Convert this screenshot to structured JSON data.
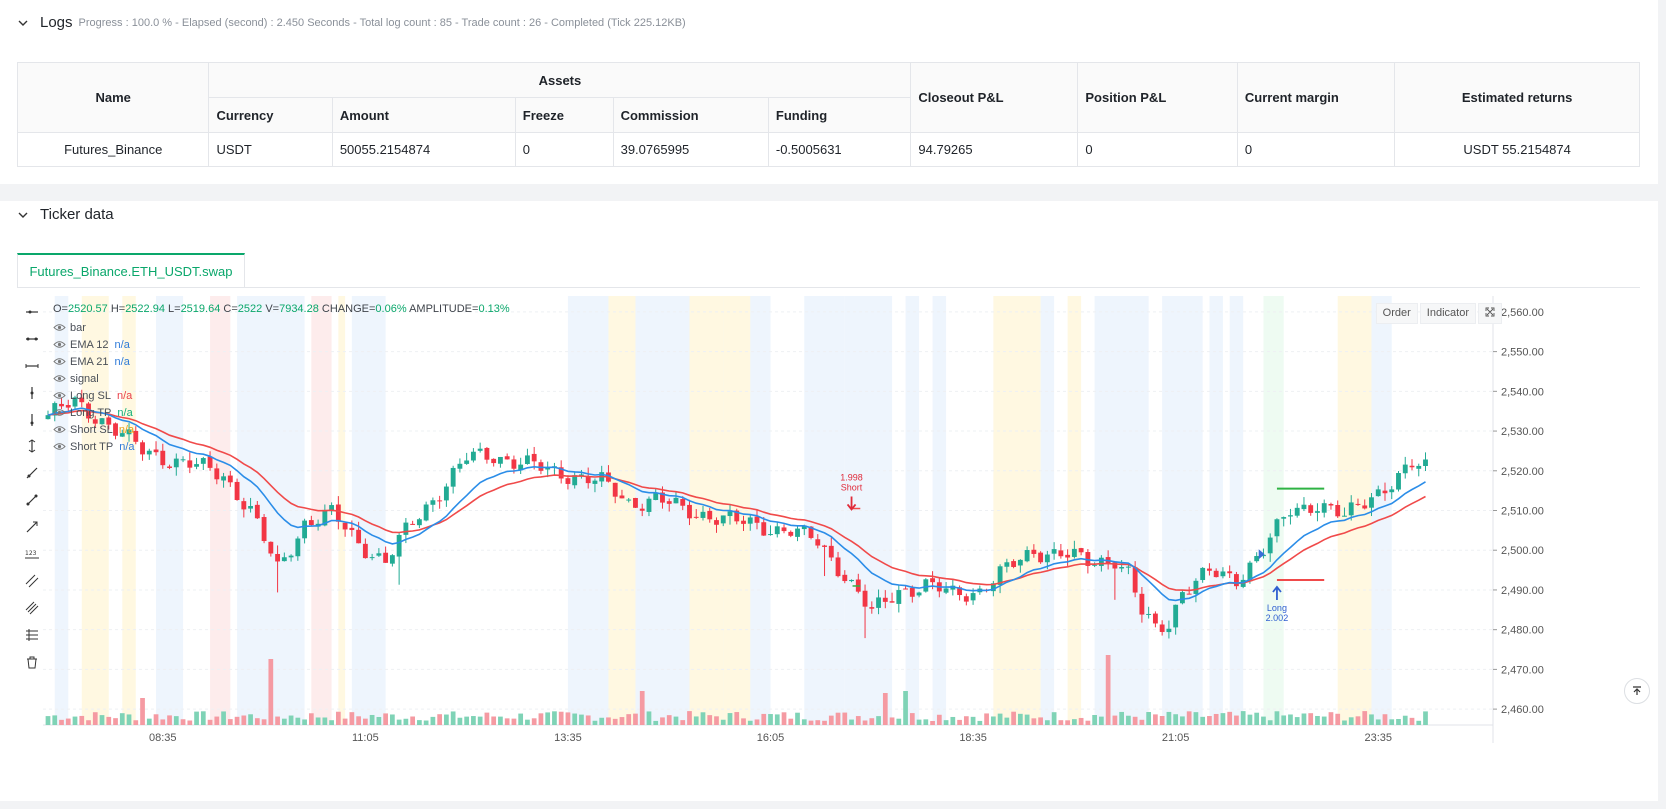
{
  "logs": {
    "title": "Logs",
    "stats": "Progress : 100.0 % - Elapsed (second) : 2.450  Seconds - Total log count : 85 - Trade count : 26 - Completed (Tick 225.12KB)"
  },
  "assets_table": {
    "group_header": "Assets",
    "headers": {
      "name": "Name",
      "currency": "Currency",
      "amount": "Amount",
      "freeze": "Freeze",
      "commission": "Commission",
      "funding": "Funding",
      "closeout_pl": "Closeout P&L",
      "position_pl": "Position P&L",
      "current_margin": "Current margin",
      "estimated_returns": "Estimated returns"
    },
    "row": {
      "name": "Futures_Binance",
      "currency": "USDT",
      "amount": "50055.2154874",
      "freeze": "0",
      "commission": "39.0765995",
      "funding": "-0.5005631",
      "closeout_pl": "94.79265",
      "position_pl": "0",
      "current_margin": "0",
      "estimated_returns": "USDT 55.2154874"
    }
  },
  "ticker": {
    "title": "Ticker data",
    "tab_label": "Futures_Binance.ETH_USDT.swap"
  },
  "ohlc": {
    "o_label": "O=",
    "o": "2520.57",
    "h_label": "H=",
    "h": "2522.94",
    "l_label": "L=",
    "l": "2519.64",
    "c_label": "C=",
    "c": "2522",
    "v_label": "V=",
    "v": "7934.28",
    "change_label": "CHANGE=",
    "change": "0.06%",
    "amp_label": "AMPLITUDE=",
    "amp": "0.13%"
  },
  "legend": [
    {
      "label": "bar",
      "value": "",
      "color": "#4a4f57"
    },
    {
      "label": "EMA 12",
      "value": "n/a",
      "color": "#2f7bd9"
    },
    {
      "label": "EMA 21",
      "value": "n/a",
      "color": "#2f7bd9"
    },
    {
      "label": "signal",
      "value": "",
      "color": "#4a4f57"
    },
    {
      "label": "Long SL",
      "value": "n/a",
      "color": "#e8414b"
    },
    {
      "label": "Long TP",
      "value": "n/a",
      "color": "#13b07a"
    },
    {
      "label": "Short SL",
      "value": "n/a",
      "color": "#e8a31d"
    },
    {
      "label": "Short TP",
      "value": "n/a",
      "color": "#2f7bd9"
    }
  ],
  "chart_buttons": {
    "order": "Order",
    "indicator": "Indicator"
  },
  "colors": {
    "up": "#22ab94",
    "down": "#f23645",
    "ema_fast": "#2b8de8",
    "ema_slow": "#f04a4a",
    "accent": "#0aa76b"
  },
  "chart_data": {
    "type": "candlestick",
    "symbol": "Futures_Binance.ETH_USDT.swap",
    "ylim": [
      2456,
      2564
    ],
    "y_ticks": [
      "2,460.00",
      "2,470.00",
      "2,480.00",
      "2,490.00",
      "2,500.00",
      "2,510.00",
      "2,520.00",
      "2,530.00",
      "2,540.00",
      "2,550.00",
      "2,560.00"
    ],
    "y_tick_values": [
      2460,
      2470,
      2480,
      2490,
      2500,
      2510,
      2520,
      2530,
      2540,
      2550,
      2560
    ],
    "x_ticks": [
      "08:35",
      "11:05",
      "13:35",
      "16:05",
      "18:35",
      "21:05",
      "23:35"
    ],
    "x_tick_index": [
      17,
      47,
      77,
      107,
      137,
      167,
      197
    ],
    "close_anchors": [
      [
        0,
        2534
      ],
      [
        4,
        2537
      ],
      [
        8,
        2533
      ],
      [
        14,
        2525
      ],
      [
        20,
        2522
      ],
      [
        26,
        2519
      ],
      [
        30,
        2510
      ],
      [
        34,
        2495
      ],
      [
        38,
        2507
      ],
      [
        42,
        2509
      ],
      [
        46,
        2502
      ],
      [
        50,
        2497
      ],
      [
        54,
        2507
      ],
      [
        58,
        2515
      ],
      [
        62,
        2523
      ],
      [
        66,
        2524
      ],
      [
        70,
        2522
      ],
      [
        74,
        2520
      ],
      [
        78,
        2519
      ],
      [
        82,
        2517
      ],
      [
        86,
        2512
      ],
      [
        90,
        2513
      ],
      [
        94,
        2510
      ],
      [
        98,
        2509
      ],
      [
        102,
        2507
      ],
      [
        106,
        2506
      ],
      [
        110,
        2505
      ],
      [
        114,
        2502
      ],
      [
        118,
        2494
      ],
      [
        122,
        2484
      ],
      [
        126,
        2490
      ],
      [
        130,
        2491
      ],
      [
        134,
        2489
      ],
      [
        138,
        2490
      ],
      [
        142,
        2495
      ],
      [
        146,
        2500
      ],
      [
        150,
        2499
      ],
      [
        154,
        2497
      ],
      [
        158,
        2498
      ],
      [
        160,
        2494
      ],
      [
        162,
        2484
      ],
      [
        164,
        2480
      ],
      [
        166,
        2482
      ],
      [
        168,
        2490
      ],
      [
        172,
        2494
      ],
      [
        176,
        2493
      ],
      [
        180,
        2500
      ],
      [
        184,
        2510
      ],
      [
        188,
        2512
      ],
      [
        192,
        2508
      ],
      [
        196,
        2514
      ],
      [
        200,
        2518
      ],
      [
        202,
        2521
      ]
    ],
    "signals": [
      {
        "label": "Short",
        "size": "1.998",
        "bar": 119,
        "price": 2509
      },
      {
        "label": "Long",
        "size": "2.002",
        "bar": 182,
        "price": 2492
      }
    ],
    "levels": [
      {
        "type": "take-profit",
        "price": 2515.5,
        "bar_from": 182,
        "bar_to": 189
      },
      {
        "type": "stop-loss",
        "price": 2492.5,
        "bar_from": 182,
        "bar_to": 189
      }
    ]
  }
}
